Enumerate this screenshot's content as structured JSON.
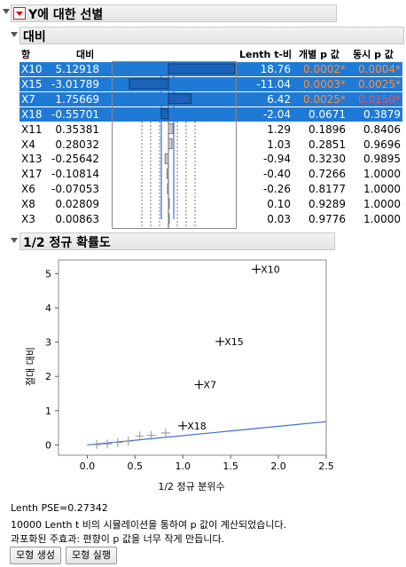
{
  "report": {
    "title": "Y에 대한 선별",
    "contrast_section": "대비",
    "normal_section": "1/2 정규 확률도"
  },
  "columns": {
    "term": "항",
    "contrast": "대비",
    "lenth_t": "Lenth t-비",
    "indiv_p": "개별 p 값",
    "simul_p": "동시 p 값"
  },
  "colors": {
    "selected": "#1f7ad6",
    "sig_p": "#ff8c3a",
    "line": "#3a6bd6"
  },
  "rows": [
    {
      "term": "X10",
      "contrast": "5.12918",
      "lenth_t": "18.76",
      "indiv_p": "0.0002*",
      "simul_p": "0.0004*",
      "selected": true
    },
    {
      "term": "X15",
      "contrast": "-3.01789",
      "lenth_t": "-11.04",
      "indiv_p": "0.0003*",
      "simul_p": "0.0025*",
      "selected": true
    },
    {
      "term": "X7",
      "contrast": "1.75669",
      "lenth_t": "6.42",
      "indiv_p": "0.0025*",
      "simul_p": "0.0150*",
      "selected": true
    },
    {
      "term": "X18",
      "contrast": "-0.55701",
      "lenth_t": "-2.04",
      "indiv_p": "0.0671",
      "simul_p": "0.3879",
      "selected": true
    },
    {
      "term": "X11",
      "contrast": "0.35381",
      "lenth_t": "1.29",
      "indiv_p": "0.1896",
      "simul_p": "0.8406",
      "selected": false
    },
    {
      "term": "X4",
      "contrast": "0.28032",
      "lenth_t": "1.03",
      "indiv_p": "0.2851",
      "simul_p": "0.9696",
      "selected": false
    },
    {
      "term": "X13",
      "contrast": "-0.25642",
      "lenth_t": "-0.94",
      "indiv_p": "0.3230",
      "simul_p": "0.9895",
      "selected": false
    },
    {
      "term": "X17",
      "contrast": "-0.10814",
      "lenth_t": "-0.40",
      "indiv_p": "0.7266",
      "simul_p": "1.0000",
      "selected": false
    },
    {
      "term": "X6",
      "contrast": "-0.07053",
      "lenth_t": "-0.26",
      "indiv_p": "0.8177",
      "simul_p": "1.0000",
      "selected": false
    },
    {
      "term": "X8",
      "contrast": "0.02809",
      "lenth_t": "0.10",
      "indiv_p": "0.9289",
      "simul_p": "1.0000",
      "selected": false
    },
    {
      "term": "X3",
      "contrast": "0.00863",
      "lenth_t": "0.03",
      "indiv_p": "0.9776",
      "simul_p": "1.0000",
      "selected": false
    }
  ],
  "chart_data": {
    "type": "scatter",
    "xlabel": "1/2 정규 분위수",
    "ylabel": "절대 대비",
    "xlim": [
      -0.3,
      2.5
    ],
    "ylim": [
      -0.3,
      5.4
    ],
    "xticks": [
      "0.0",
      "0.5",
      "1.0",
      "1.5",
      "2.0",
      "2.5"
    ],
    "yticks": [
      "0",
      "1",
      "2",
      "3",
      "4",
      "5"
    ],
    "labeled_points": [
      {
        "label": "X10",
        "x": 1.77,
        "y": 5.13
      },
      {
        "label": "X15",
        "x": 1.39,
        "y": 3.02
      },
      {
        "label": "X7",
        "x": 1.17,
        "y": 1.76
      },
      {
        "label": "X18",
        "x": 1.0,
        "y": 0.56
      }
    ],
    "unlabeled_points": [
      {
        "x": 0.82,
        "y": 0.35
      },
      {
        "x": 0.67,
        "y": 0.28
      },
      {
        "x": 0.55,
        "y": 0.26
      },
      {
        "x": 0.43,
        "y": 0.11
      },
      {
        "x": 0.32,
        "y": 0.07
      },
      {
        "x": 0.21,
        "y": 0.03
      },
      {
        "x": 0.1,
        "y": 0.01
      }
    ],
    "reference_line": {
      "x0": 0,
      "y0": 0,
      "x1": 2.5,
      "y1": 0.68
    }
  },
  "notes": {
    "pse": "Lenth PSE=0.27342",
    "sim": "10000 Lenth t 비의 시뮬레이션을 통하여 p 값이 계산되었습니다.",
    "bias": "과포화된 주효과: 편향이 p 값을 너무 작게 만듭니다."
  },
  "buttons": {
    "make_model": "모형 생성",
    "run_model": "모형 실행"
  }
}
